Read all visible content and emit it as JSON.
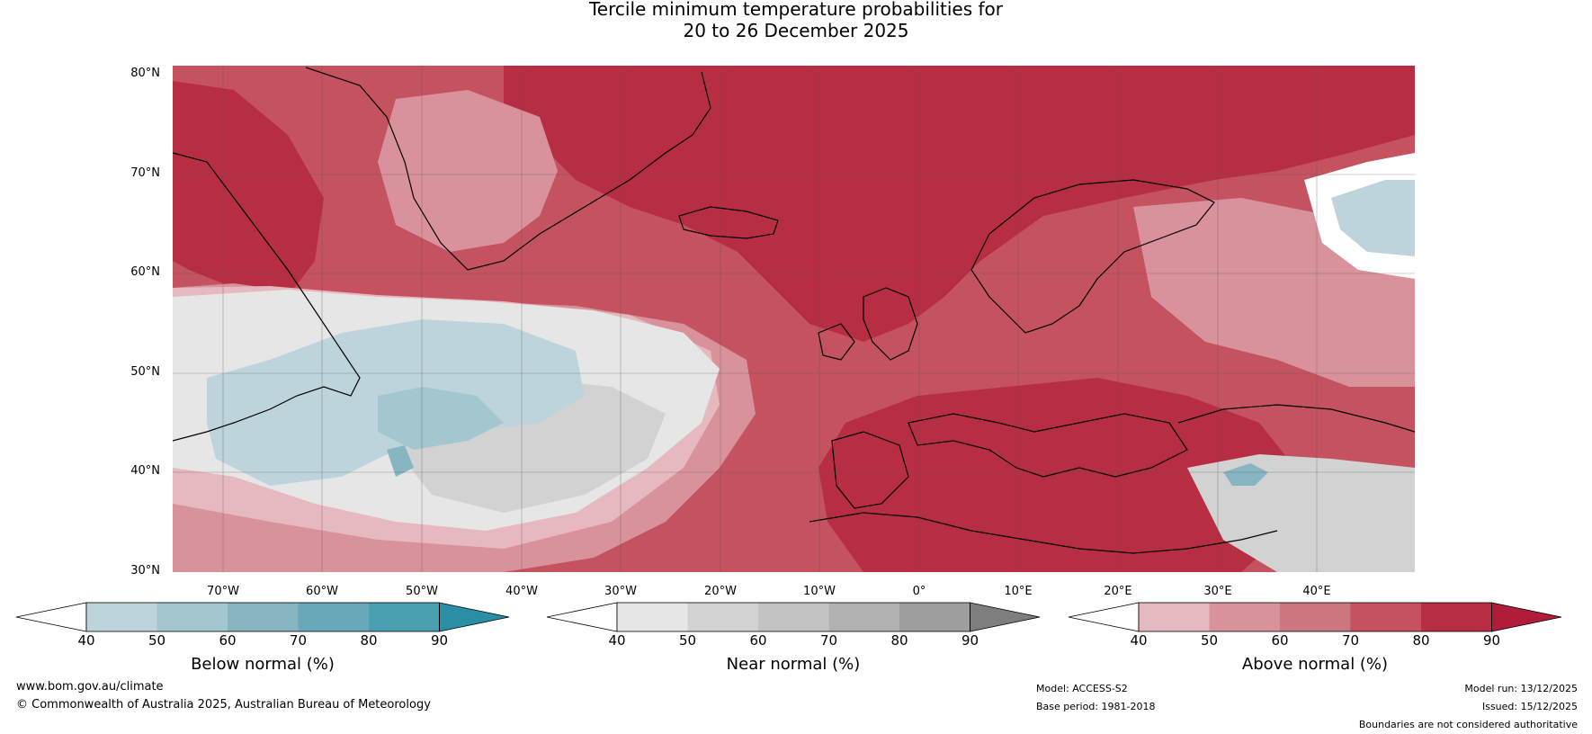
{
  "title": {
    "line1": "Tercile minimum temperature probabilities for",
    "line2": "20 to 26 December 2025"
  },
  "lat_labels": [
    "80°N",
    "70°N",
    "60°N",
    "50°N",
    "40°N",
    "30°N"
  ],
  "lon_labels": [
    "70°W",
    "60°W",
    "50°W",
    "40°W",
    "30°W",
    "20°W",
    "10°W",
    "0°",
    "10°E",
    "20°E",
    "30°E",
    "40°E"
  ],
  "colorbars": [
    {
      "title": "Below normal (%)",
      "ticks": [
        "40",
        "50",
        "60",
        "70",
        "80",
        "90"
      ],
      "colors": [
        "#ffffff",
        "#bdd4dc",
        "#a4c6cf",
        "#87b6c2",
        "#68a8b8",
        "#4aa0b2",
        "#2a8ea5"
      ]
    },
    {
      "title": "Near normal (%)",
      "ticks": [
        "40",
        "50",
        "60",
        "70",
        "80",
        "90"
      ],
      "colors": [
        "#ffffff",
        "#e6e6e6",
        "#d2d2d2",
        "#c3c3c3",
        "#b1b1b1",
        "#9e9e9e",
        "#7e7e7e"
      ]
    },
    {
      "title": "Above normal (%)",
      "ticks": [
        "40",
        "50",
        "60",
        "70",
        "80",
        "90"
      ],
      "colors": [
        "#ffffff",
        "#e6b8bf",
        "#d9929c",
        "#cc7680",
        "#c4525f",
        "#b72e42",
        "#b01d39"
      ]
    }
  ],
  "footer": {
    "website": "www.bom.gov.au/climate",
    "copyright": "© Commonwealth of Australia 2025, Australian Bureau of Meteorology",
    "model": "Model: ACCESS-S2",
    "base_period": "Base period: 1981-2018",
    "model_run": "Model run: 13/12/2025",
    "issued": "Issued: 15/12/2025",
    "disclaimer": "Boundaries are not considered authoritative"
  }
}
